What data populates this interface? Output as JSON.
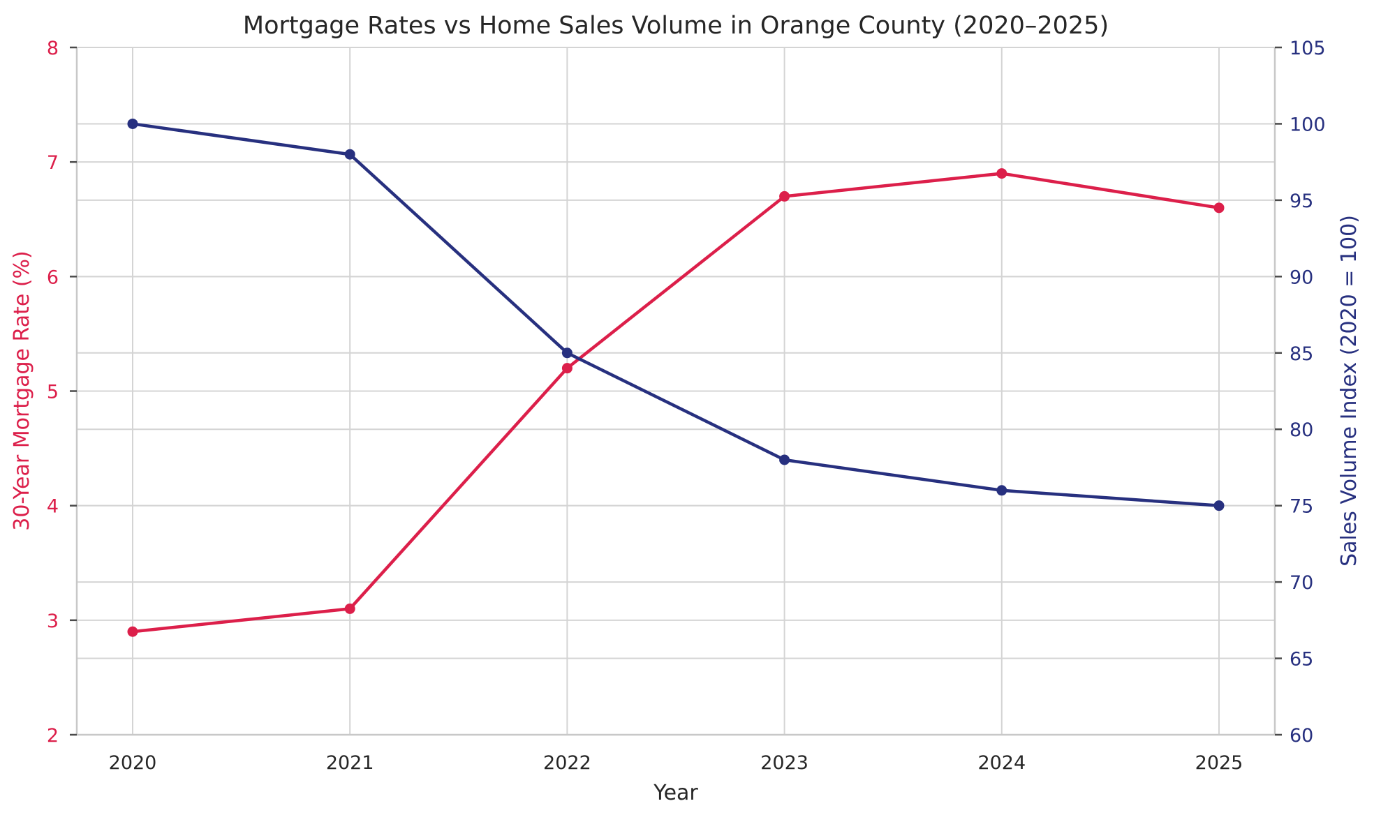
{
  "chart_data": {
    "type": "line",
    "title": "Mortgage Rates vs Home Sales Volume in Orange County (2020–2025)",
    "xlabel": "Year",
    "categories": [
      "2020",
      "2021",
      "2022",
      "2023",
      "2024",
      "2025"
    ],
    "series": [
      {
        "name": "30-Year Mortgage Rate (%)",
        "axis": "left",
        "color": "#dc1f4a",
        "values": [
          2.9,
          3.1,
          5.2,
          6.7,
          6.9,
          6.6
        ]
      },
      {
        "name": "Sales Volume Index (2020 = 100)",
        "axis": "right",
        "color": "#27307f",
        "values": [
          100,
          98,
          85,
          78,
          76,
          75
        ]
      }
    ],
    "y_left": {
      "label": "30-Year Mortgage Rate (%)",
      "ylim": [
        2,
        8
      ],
      "ticks": [
        2,
        3,
        4,
        5,
        6,
        7,
        8
      ],
      "color": "#dc1f4a"
    },
    "y_right": {
      "label": "Sales Volume Index (2020 = 100)",
      "ylim": [
        60,
        105
      ],
      "ticks": [
        60,
        65,
        70,
        75,
        80,
        85,
        90,
        95,
        100,
        105
      ],
      "color": "#27307f"
    },
    "grid": true,
    "legend": "none"
  }
}
